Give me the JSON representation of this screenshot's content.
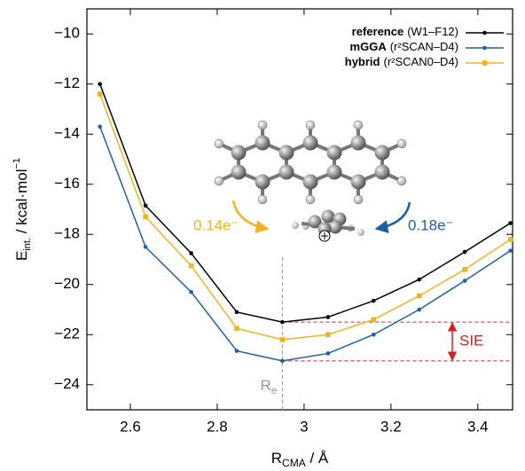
{
  "chart_data": {
    "type": "line",
    "x_label": {
      "main": "R",
      "sub": "CMA",
      "rest": " / Å"
    },
    "y_label": {
      "main": "E",
      "sub": "int.",
      "rest": " / kcal·mol",
      "sup": "−1"
    },
    "x": [
      2.53,
      2.635,
      2.74,
      2.845,
      2.95,
      3.055,
      3.16,
      3.265,
      3.37,
      3.475
    ],
    "series": [
      {
        "name": "reference",
        "detail": "(W1–F12)",
        "color": "#000000",
        "marker": "dot",
        "values": [
          -12.0,
          -16.85,
          -18.75,
          -21.1,
          -21.5,
          -21.3,
          -20.65,
          -19.8,
          -18.7,
          -17.55
        ]
      },
      {
        "name": "mGGA",
        "detail": "(r²SCAN–D4)",
        "color": "#1f5fa6",
        "marker": "dot",
        "values": [
          -13.7,
          -18.5,
          -20.3,
          -22.65,
          -23.05,
          -22.75,
          -22.0,
          -21.0,
          -19.85,
          -18.65
        ]
      },
      {
        "name": "hybrid",
        "detail": "(r²SCAN0–D4)",
        "color": "#f0b323",
        "marker": "square",
        "values": [
          -12.4,
          -17.3,
          -19.25,
          -21.75,
          -22.2,
          -22.0,
          -21.4,
          -20.45,
          -19.4,
          -18.2
        ]
      }
    ],
    "xlim": [
      2.5,
      3.48
    ],
    "ylim": [
      -25,
      -9
    ],
    "xticks": [
      2.6,
      2.8,
      3,
      3.2,
      3.4
    ],
    "yticks": [
      {
        "value": -10,
        "label": "−10"
      },
      {
        "value": -12,
        "label": "−12"
      },
      {
        "value": -14,
        "label": "−14"
      },
      {
        "value": -16,
        "label": "−16"
      },
      {
        "value": -18,
        "label": "−18"
      },
      {
        "value": -20,
        "label": "−20"
      },
      {
        "value": -22,
        "label": "−22"
      },
      {
        "value": -24,
        "label": "−24"
      }
    ],
    "legend": "upper right",
    "annotations": {
      "re": {
        "main": "R",
        "sub": "e",
        "x": 2.95,
        "color": "#999999"
      },
      "sie": {
        "text": "SIE",
        "x": 2.95,
        "color": "#d62020"
      },
      "charge_left": {
        "text": "0.14e⁻",
        "color": "#f0b323"
      },
      "charge_right": {
        "text": "0.18e⁻",
        "color": "#1f5fa6"
      }
    }
  }
}
